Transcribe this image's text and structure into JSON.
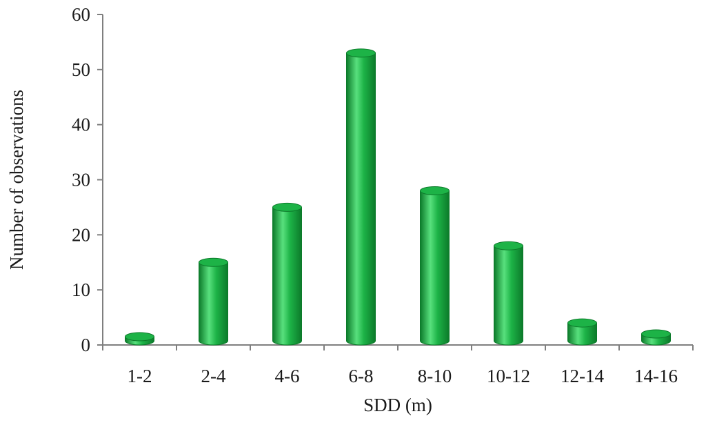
{
  "chart_data": {
    "type": "bar",
    "style": "3d-cylinder",
    "categories": [
      "1-2",
      "2-4",
      "4-6",
      "6-8",
      "8-10",
      "10-12",
      "12-14",
      "14-16"
    ],
    "values": [
      1.5,
      15,
      25,
      53,
      28,
      18,
      4,
      2
    ],
    "xlabel": "SDD (m)",
    "ylabel": "Number of observations",
    "ylim": [
      0,
      60
    ],
    "yticks": [
      0,
      10,
      20,
      30,
      40,
      50,
      60
    ],
    "grid": false,
    "legend": "none",
    "colors": {
      "bar": "#1db347",
      "bar_dark": "#0c7a2a",
      "bar_light": "#58e07d",
      "axis": "#7f7f7f"
    }
  }
}
